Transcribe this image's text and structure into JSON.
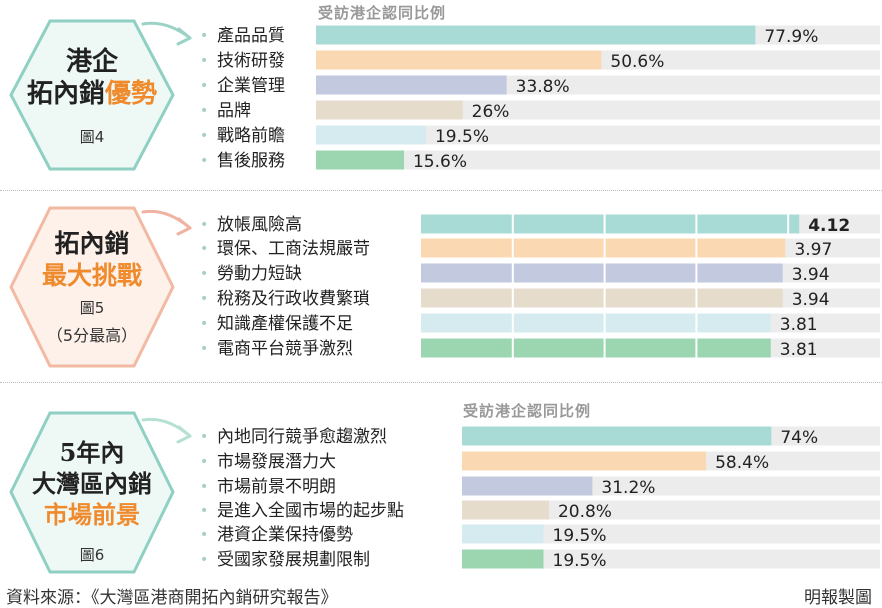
{
  "colors": [
    "#a9dbd6",
    "#fad8b2",
    "#c3c9de",
    "#e6dccb",
    "#d6ebef",
    "#9bd6b1"
  ],
  "section1": {
    "title1": "港企",
    "title2a": "拓內銷",
    "title2b": "優勢",
    "fig": "圖4",
    "caption": "受訪港企認同比例"
  },
  "section2": {
    "title1": "拓內銷",
    "title2": "最大挑戰",
    "fig": "圖5",
    "note": "（5分最高）"
  },
  "section3": {
    "title1": "5年內",
    "title2": "大灣區內銷",
    "title3": "市場前景",
    "fig": "圖6",
    "caption": "受訪港企認同比例"
  },
  "footer": {
    "source": "資料來源：《大灣區港商開拓內銷研究報告》",
    "credit": "明報製圖"
  },
  "chart_data": [
    {
      "type": "bar",
      "title": "受訪港企認同比例",
      "categories": [
        "產品品質",
        "技術研發",
        "企業管理",
        "品牌",
        "戰略前瞻",
        "售後服務"
      ],
      "values": [
        77.9,
        50.6,
        33.8,
        26,
        19.5,
        15.6
      ],
      "value_labels": [
        "77.9%",
        "50.6%",
        "33.8%",
        "26%",
        "19.5%",
        "15.6%"
      ],
      "ylim": [
        0,
        100
      ]
    },
    {
      "type": "bar",
      "categories": [
        "放帳風險高",
        "環保、工商法規嚴苛",
        "勞動力短缺",
        "稅務及行政收費繁瑣",
        "知識產權保護不足",
        "電商平台競爭激烈"
      ],
      "values": [
        4.12,
        3.97,
        3.94,
        3.94,
        3.81,
        3.81
      ],
      "value_labels": [
        "4.12",
        "3.97",
        "3.94",
        "3.94",
        "3.81",
        "3.81"
      ],
      "ylim": [
        0,
        5
      ]
    },
    {
      "type": "bar",
      "title": "受訪港企認同比例",
      "categories": [
        "內地同行競爭愈趨激烈",
        "市場發展潛力大",
        "市場前景不明朗",
        "是進入全國市場的起步點",
        "港資企業保持優勢",
        "受國家發展規劃限制"
      ],
      "values": [
        74,
        58.4,
        31.2,
        20.8,
        19.5,
        19.5
      ],
      "value_labels": [
        "74%",
        "58.4%",
        "31.2%",
        "20.8%",
        "19.5%",
        "19.5%"
      ],
      "ylim": [
        0,
        100
      ]
    }
  ]
}
